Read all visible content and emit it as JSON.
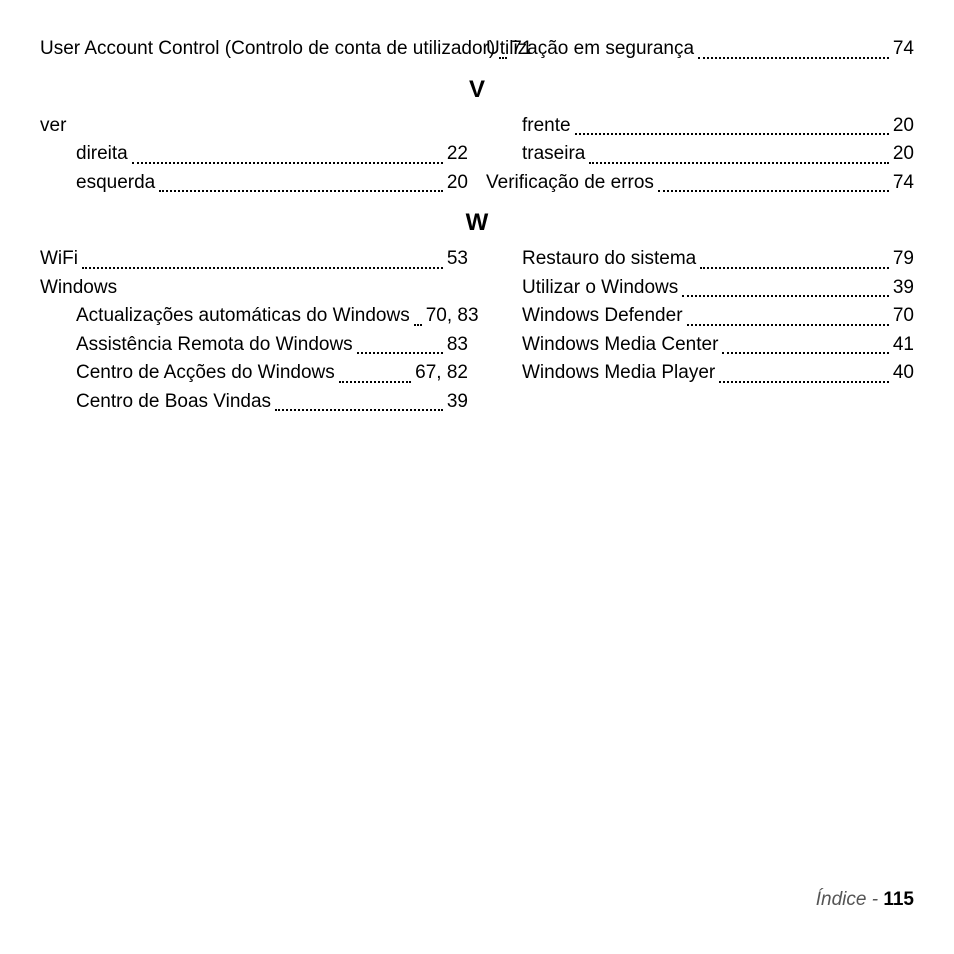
{
  "text_color": "#000000",
  "background_color": "#ffffff",
  "font_family": "Arial, Helvetica, sans-serif",
  "body_fontsize_pt": 14,
  "heading_fontsize_pt": 18,
  "footer_fontsize_pt": 14,
  "footer_label_color": "#555555",
  "pre_entries": [
    {
      "term": "User Account Control (Controlo de conta de utilizador)",
      "page": "71",
      "indent": 0
    },
    {
      "term": "Utilização em segurança",
      "page": "74",
      "indent": 0
    }
  ],
  "sections": [
    {
      "letter": "V",
      "entries": [
        {
          "term": "ver",
          "page": "",
          "indent": 0,
          "nopage": true
        },
        {
          "term": "direita",
          "page": "22",
          "indent": 1
        },
        {
          "term": "esquerda",
          "page": "20",
          "indent": 1
        },
        {
          "term": "frente",
          "page": "20",
          "indent": 1
        },
        {
          "term": "traseira",
          "page": "20",
          "indent": 1
        },
        {
          "term": "Verificação de erros",
          "page": "74",
          "indent": 0
        }
      ]
    },
    {
      "letter": "W",
      "entries": [
        {
          "term": "WiFi",
          "page": "53",
          "indent": 0
        },
        {
          "term": "Windows",
          "page": "",
          "indent": 0,
          "nopage": true
        },
        {
          "term": "Actualizações automáticas do Windows",
          "page": "70, 83",
          "indent": 1
        },
        {
          "term": "Assistência Remota do Windows",
          "page": "83",
          "indent": 1
        },
        {
          "term": "Centro de Acções do Windows",
          "page": "67, 82",
          "indent": 1
        },
        {
          "term": "Centro de Boas Vindas",
          "page": "39",
          "indent": 1
        },
        {
          "term": "Restauro do sistema",
          "page": "79",
          "indent": 1
        },
        {
          "term": "Utilizar o Windows",
          "page": "39",
          "indent": 1
        },
        {
          "term": "Windows Defender",
          "page": "70",
          "indent": 1
        },
        {
          "term": "Windows Media Center",
          "page": "41",
          "indent": 1
        },
        {
          "term": "Windows Media Player",
          "page": "40",
          "indent": 1
        }
      ]
    }
  ],
  "footer": {
    "label": "Índice - ",
    "page": "115"
  }
}
